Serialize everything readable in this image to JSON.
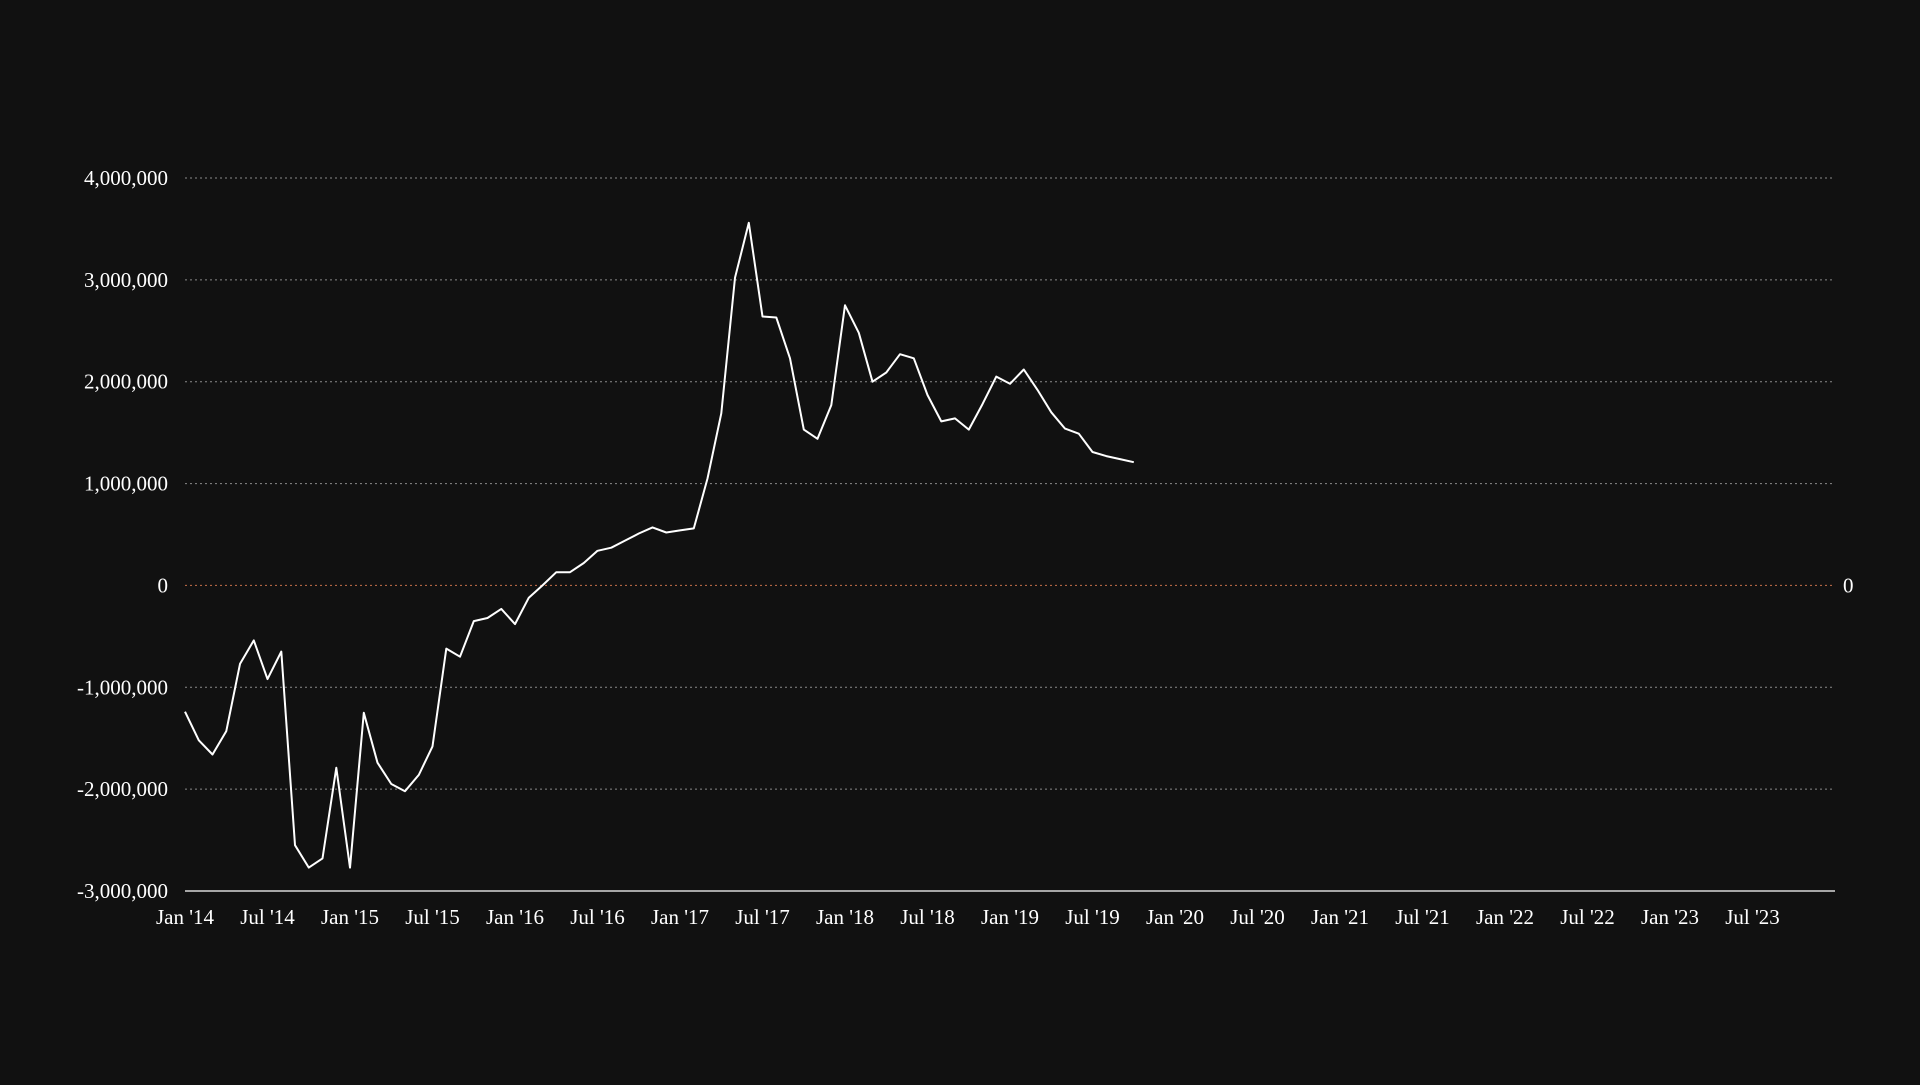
{
  "chart_data": {
    "type": "line",
    "title": "",
    "xlabel": "",
    "ylabel": "",
    "x_range": [
      "2014-01",
      "2024-01"
    ],
    "ylim": [
      -3000000,
      4000000
    ],
    "y_ticks": [
      -3000000,
      -2000000,
      -1000000,
      0,
      1000000,
      2000000,
      3000000,
      4000000
    ],
    "y_tick_labels": [
      "-3,000,000",
      "-2,000,000",
      "-1,000,000",
      "0",
      "1,000,000",
      "2,000,000",
      "3,000,000",
      "4,000,000"
    ],
    "x_ticks": [
      "2014-01",
      "2014-07",
      "2015-01",
      "2015-07",
      "2016-01",
      "2016-07",
      "2017-01",
      "2017-07",
      "2018-01",
      "2018-07",
      "2019-01",
      "2019-07",
      "2020-01",
      "2020-07",
      "2021-01",
      "2021-07",
      "2022-01",
      "2022-07",
      "2023-01",
      "2023-07"
    ],
    "x_tick_labels": [
      "Jan '14",
      "Jul '14",
      "Jan '15",
      "Jul '15",
      "Jan '16",
      "Jul '16",
      "Jan '17",
      "Jul '17",
      "Jan '18",
      "Jul '18",
      "Jan '19",
      "Jul '19",
      "Jan '20",
      "Jul '20",
      "Jan '21",
      "Jul '21",
      "Jan '22",
      "Jul '22",
      "Jan '23",
      "Jul '23"
    ],
    "zero_line_label": "0",
    "grid": true,
    "colors": {
      "background": "#111111",
      "line": "#ffffff",
      "grid": "#8a8a8a",
      "zero_line": "#c8704a",
      "axis": "#ffffff",
      "text": "#ffffff"
    },
    "series": [
      {
        "x": [
          "2014-01",
          "2014-02",
          "2014-03",
          "2014-04",
          "2014-05",
          "2014-06",
          "2014-07",
          "2014-08",
          "2014-09",
          "2014-10",
          "2014-11",
          "2014-12",
          "2015-01",
          "2015-02",
          "2015-03",
          "2015-04",
          "2015-05",
          "2015-06",
          "2015-07",
          "2015-08",
          "2015-09",
          "2015-10",
          "2015-11",
          "2015-12",
          "2016-01",
          "2016-02",
          "2016-03",
          "2016-04",
          "2016-05",
          "2016-06",
          "2016-07",
          "2016-08",
          "2016-09",
          "2016-10",
          "2016-11",
          "2016-12",
          "2017-01",
          "2017-02",
          "2017-03",
          "2017-04",
          "2017-05",
          "2017-06",
          "2017-07",
          "2017-08",
          "2017-09",
          "2017-10",
          "2017-11",
          "2017-12",
          "2018-01",
          "2018-02",
          "2018-03",
          "2018-04",
          "2018-05",
          "2018-06",
          "2018-07",
          "2018-08",
          "2018-09",
          "2018-10",
          "2018-11",
          "2018-12",
          "2019-01",
          "2019-02",
          "2019-03",
          "2019-04",
          "2019-05",
          "2019-06",
          "2019-07",
          "2019-08",
          "2019-09",
          "2019-10"
        ],
        "values": [
          -1240000,
          -1520000,
          -1660000,
          -1430000,
          -770000,
          -540000,
          -920000,
          -650000,
          -2550000,
          -2770000,
          -2680000,
          -1790000,
          -2770000,
          -1250000,
          -1740000,
          -1950000,
          -2020000,
          -1860000,
          -1580000,
          -620000,
          -700000,
          -350000,
          -320000,
          -230000,
          -380000,
          -120000,
          0,
          130000,
          130000,
          220000,
          340000,
          370000,
          440000,
          510000,
          570000,
          520000,
          540000,
          560000,
          1050000,
          1690000,
          3020000,
          3560000,
          2640000,
          2630000,
          2230000,
          1530000,
          1440000,
          1770000,
          2750000,
          2480000,
          2000000,
          2090000,
          2270000,
          2230000,
          1870000,
          1610000,
          1640000,
          1530000,
          1780000,
          2050000,
          1980000,
          2120000,
          1920000,
          1700000,
          1540000,
          1490000,
          1310000,
          1270000,
          1240000,
          1210000
        ]
      }
    ]
  }
}
